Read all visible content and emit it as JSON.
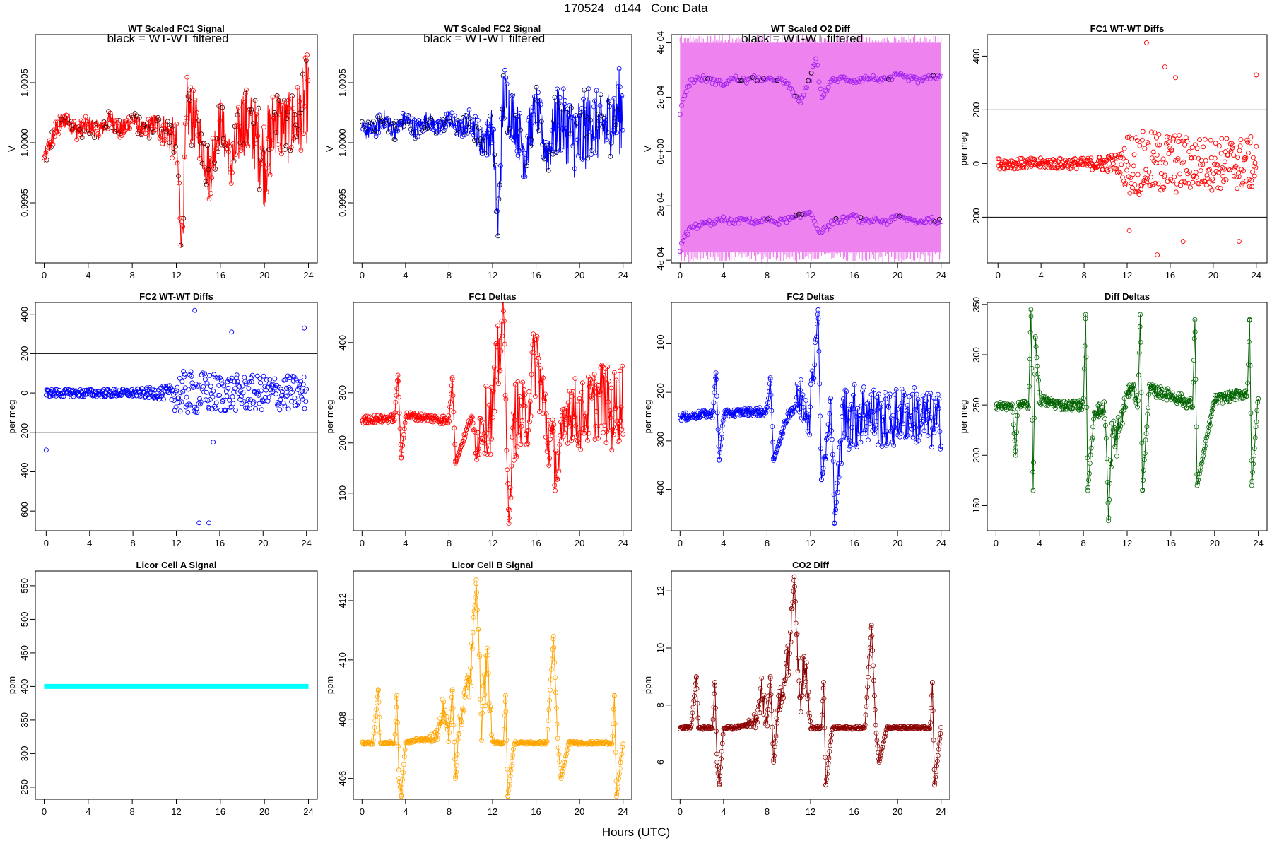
{
  "page": {
    "title": "170524   d144   Conc Data",
    "x_caption": "Hours (UTC)"
  },
  "chart_data": [
    {
      "id": "p1",
      "type": "line",
      "title": "WT Scaled FC1 Signal",
      "annotation": "black = WT-WT filtered",
      "ylabel": "V",
      "xlim": [
        -0.8,
        24.8
      ],
      "ylim": [
        0.999,
        1.0009
      ],
      "xticks": [
        0,
        4,
        8,
        12,
        16,
        20,
        24
      ],
      "yticks": [
        0.9995,
        1.0,
        1.0005
      ],
      "yticklabels": [
        "0.9995",
        "1.0000",
        "1.0005"
      ],
      "color": "#ff0000",
      "x": [
        0,
        1,
        2,
        3,
        4,
        5,
        6,
        7,
        8,
        9,
        10,
        11,
        12,
        12.5,
        13,
        14,
        15,
        16,
        17,
        18,
        19,
        20,
        21,
        22,
        23,
        24
      ],
      "y": [
        0.99985,
        1.0001,
        1.0002,
        1.0001,
        1.00015,
        1.0001,
        1.0002,
        1.0001,
        1.0002,
        1.0001,
        1.00015,
        1.0001,
        1.0,
        0.9992,
        1.0003,
        1.0001,
        0.99975,
        1.0002,
        0.9998,
        1.0002,
        1.0001,
        0.99985,
        1.0002,
        1.0001,
        1.0002,
        1.0004
      ],
      "band": [
        8e-05,
        8e-05,
        8e-05,
        8e-05,
        8e-05,
        8e-05,
        8e-05,
        8e-05,
        8e-05,
        8e-05,
        0.0001,
        0.00015,
        0.0002,
        0.0002,
        0.0003,
        0.0002,
        0.00025,
        0.0002,
        0.0002,
        0.0003,
        0.0003,
        0.0004,
        0.0003,
        0.0003,
        0.0003,
        0.0004
      ],
      "filtered_color": "#4d0000"
    },
    {
      "id": "p2",
      "type": "line",
      "title": "WT Scaled FC2 Signal",
      "annotation": "black = WT-WT filtered",
      "ylabel": "V",
      "xlim": [
        -0.8,
        24.8
      ],
      "ylim": [
        0.999,
        1.0009
      ],
      "xticks": [
        0,
        4,
        8,
        12,
        16,
        20,
        24
      ],
      "yticks": [
        0.9995,
        1.0,
        1.0005
      ],
      "yticklabels": [
        "0.9995",
        "1.0000",
        "1.0005"
      ],
      "color": "#0000ff",
      "x": [
        0,
        1,
        2,
        3,
        4,
        5,
        6,
        7,
        8,
        9,
        10,
        11,
        12,
        12.5,
        13,
        14,
        15,
        16,
        17,
        18,
        19,
        20,
        21,
        22,
        23,
        24
      ],
      "y": [
        1.0001,
        1.0001,
        1.0002,
        1.0001,
        1.0002,
        1.0001,
        1.0002,
        1.0001,
        1.0002,
        1.0001,
        1.0002,
        1.0,
        1.0001,
        0.9993,
        1.0004,
        1.0002,
        0.9999,
        1.0003,
        0.9999,
        1.0002,
        1.0001,
        1.0,
        1.0002,
        1.0001,
        1.0002,
        1.0003
      ],
      "band": [
        8e-05,
        8e-05,
        8e-05,
        8e-05,
        8e-05,
        8e-05,
        8e-05,
        8e-05,
        8e-05,
        8e-05,
        0.0001,
        0.00015,
        0.0002,
        0.0002,
        0.0003,
        0.0002,
        0.00025,
        0.0002,
        0.0002,
        0.0003,
        0.0003,
        0.0004,
        0.0003,
        0.0003,
        0.0003,
        0.0004
      ],
      "filtered_color": "#000033"
    },
    {
      "id": "p3",
      "type": "scatter",
      "title": "WT Scaled O2 Diff",
      "annotation": "black = WT-WT filtered",
      "ylabel": "V",
      "xlim": [
        -0.8,
        24.8
      ],
      "ylim": [
        -0.00041,
        0.00043
      ],
      "xticks": [
        0,
        4,
        8,
        12,
        16,
        20,
        24
      ],
      "yticks": [
        -0.0004,
        -0.0002,
        0,
        0.0002,
        0.0004
      ],
      "yticklabels": [
        "-4e-04",
        "-2e-04",
        "0e+00",
        "2e-04",
        "4e-04"
      ],
      "fill_color": "#ee82ee",
      "point_color": "#a020f0",
      "filtered_color": "#000000",
      "fill_range": [
        -0.00037,
        0.0004
      ],
      "upper": {
        "x": [
          0,
          0.5,
          1,
          2,
          3,
          4,
          5,
          6,
          7,
          8,
          9,
          10,
          11,
          12,
          12.5,
          13,
          14,
          15,
          16,
          17,
          18,
          19,
          20,
          21,
          22,
          23,
          24
        ],
        "y": [
          0.00014,
          0.00022,
          0.00026,
          0.00027,
          0.00026,
          0.00025,
          0.00027,
          0.00026,
          0.00027,
          0.00026,
          0.00027,
          0.00024,
          0.00018,
          0.00027,
          0.00035,
          0.0002,
          0.00026,
          0.00027,
          0.00026,
          0.00027,
          0.00027,
          0.00026,
          0.00028,
          0.00027,
          0.00026,
          0.00027,
          0.00028
        ]
      },
      "lower": {
        "x": [
          0,
          0.5,
          1,
          2,
          3,
          4,
          5,
          6,
          7,
          8,
          9,
          10,
          11,
          12,
          12.5,
          13,
          14,
          15,
          16,
          17,
          18,
          19,
          20,
          21,
          22,
          23,
          24
        ],
        "y": [
          -0.00036,
          -0.00031,
          -0.00028,
          -0.00027,
          -0.00026,
          -0.00025,
          -0.00026,
          -0.00025,
          -0.00026,
          -0.00025,
          -0.00026,
          -0.00025,
          -0.00024,
          -0.00022,
          -0.00027,
          -0.0003,
          -0.00026,
          -0.00025,
          -0.00024,
          -0.00026,
          -0.00025,
          -0.00026,
          -0.00024,
          -0.00025,
          -0.00026,
          -0.00025,
          -0.00026
        ]
      }
    },
    {
      "id": "p4",
      "type": "scatter",
      "title": "FC1 WT-WT Diffs",
      "ylabel": "per meg",
      "xlim": [
        -1,
        25
      ],
      "ylim": [
        -370,
        480
      ],
      "xticks": [
        0,
        4,
        8,
        12,
        16,
        20,
        24
      ],
      "yticks": [
        -200,
        0,
        200,
        400
      ],
      "yticklabels": [
        "-200",
        "0",
        "200",
        "400"
      ],
      "hlines": [
        200,
        -200
      ],
      "color": "#ff0000",
      "spread_y": [
        20,
        20,
        20,
        20,
        20,
        30,
        40,
        120,
        120,
        120,
        100,
        100,
        100
      ],
      "spread_x": [
        0,
        2,
        4,
        6,
        8,
        10,
        11.5,
        12,
        14,
        16,
        18,
        20,
        24
      ],
      "x": [
        13.8,
        15.5,
        16.5,
        17.2,
        12.2,
        14.8,
        22.4,
        24.0
      ],
      "y": [
        450,
        360,
        320,
        -290,
        -250,
        -340,
        -290,
        330
      ]
    },
    {
      "id": "p5",
      "type": "scatter",
      "title": "FC2 WT-WT Diffs",
      "ylabel": "per meg",
      "xlim": [
        -1,
        25
      ],
      "ylim": [
        -700,
        460
      ],
      "xticks": [
        0,
        4,
        8,
        12,
        16,
        20,
        24
      ],
      "yticks": [
        -600,
        -400,
        -200,
        0,
        200,
        400
      ],
      "yticklabels": [
        "-600",
        "-400",
        "-200",
        "0",
        "200",
        "400"
      ],
      "hlines": [
        200,
        -200
      ],
      "color": "#0000ff",
      "spread_x": [
        0,
        2,
        4,
        6,
        8,
        10,
        11.5,
        12,
        14,
        16,
        18,
        20,
        24
      ],
      "spread_y": [
        20,
        20,
        20,
        20,
        20,
        30,
        40,
        110,
        110,
        100,
        90,
        90,
        90
      ],
      "x": [
        0.0,
        13.7,
        14.1,
        15.0,
        15.4,
        17.1,
        23.8
      ],
      "y": [
        -290,
        420,
        -660,
        -660,
        -250,
        310,
        330
      ]
    },
    {
      "id": "p6",
      "type": "line",
      "title": "FC1 Deltas",
      "ylabel": "per meg",
      "xlim": [
        -0.8,
        24.8
      ],
      "ylim": [
        25,
        480
      ],
      "xticks": [
        0,
        4,
        8,
        12,
        16,
        20,
        24
      ],
      "yticks": [
        100,
        200,
        300,
        400
      ],
      "yticklabels": [
        "100",
        "200",
        "300",
        "400"
      ],
      "color": "#ff0000",
      "x": [
        0,
        1,
        2,
        3,
        3.3,
        3.6,
        4,
        6,
        8,
        8.3,
        8.6,
        10,
        10.5,
        11,
        12,
        13,
        13.5,
        14,
        15,
        16,
        17,
        18,
        19,
        20,
        21,
        22,
        23,
        24
      ],
      "y": [
        245,
        248,
        248,
        250,
        335,
        170,
        255,
        250,
        245,
        330,
        160,
        250,
        200,
        240,
        255,
        460,
        40,
        250,
        240,
        380,
        230,
        150,
        280,
        250,
        270,
        290,
        260,
        290
      ],
      "band": [
        8,
        8,
        8,
        8,
        0,
        0,
        8,
        8,
        10,
        0,
        0,
        10,
        40,
        60,
        80,
        80,
        0,
        80,
        80,
        80,
        80,
        60,
        70,
        70,
        70,
        80,
        80,
        80
      ]
    },
    {
      "id": "p7",
      "type": "line",
      "title": "FC2 Deltas",
      "ylabel": "per meg",
      "xlim": [
        -0.8,
        24.8
      ],
      "ylim": [
        -485,
        -15
      ],
      "xticks": [
        0,
        4,
        8,
        12,
        16,
        20,
        24
      ],
      "yticks": [
        -400,
        -300,
        -200,
        -100
      ],
      "yticklabels": [
        "-400",
        "-300",
        "-200",
        "-100"
      ],
      "color": "#0000ff",
      "x": [
        0,
        1,
        2,
        3,
        3.3,
        3.6,
        4,
        6,
        8,
        8.3,
        8.6,
        10,
        10.5,
        11,
        12,
        12.7,
        13,
        14,
        14.2,
        15,
        16,
        17,
        18,
        19,
        20,
        21,
        22,
        23,
        24
      ],
      "y": [
        -250,
        -250,
        -245,
        -245,
        -160,
        -340,
        -245,
        -240,
        -240,
        -170,
        -340,
        -240,
        -230,
        -210,
        -230,
        -30,
        -380,
        -230,
        -470,
        -250,
        -250,
        -240,
        -250,
        -260,
        -250,
        -240,
        -250,
        -260,
        -260
      ],
      "band": [
        8,
        8,
        8,
        8,
        0,
        0,
        8,
        8,
        10,
        0,
        0,
        10,
        30,
        50,
        60,
        0,
        0,
        70,
        0,
        70,
        70,
        70,
        60,
        60,
        60,
        60,
        60,
        60,
        60
      ]
    },
    {
      "id": "p8",
      "type": "line",
      "title": "Diff Deltas",
      "ylabel": "per meg",
      "xlim": [
        -0.8,
        24.8
      ],
      "ylim": [
        125,
        352
      ],
      "xticks": [
        0,
        4,
        8,
        12,
        16,
        20,
        24
      ],
      "yticks": [
        150,
        200,
        250,
        300,
        350
      ],
      "yticklabels": [
        "150",
        "200",
        "250",
        "300",
        "350"
      ],
      "color": "#006400",
      "x": [
        0,
        1,
        1.5,
        1.8,
        2,
        3,
        3.2,
        3.4,
        3.6,
        4,
        6,
        8,
        8.2,
        8.4,
        9,
        10,
        10.3,
        10.6,
        11,
        12,
        12.5,
        13,
        13.2,
        13.4,
        14,
        16,
        18,
        18.2,
        18.4,
        20,
        22,
        23,
        23.2,
        23.4,
        24
      ],
      "y": [
        250,
        248,
        250,
        200,
        250,
        250,
        345,
        165,
        318,
        255,
        250,
        250,
        340,
        165,
        245,
        245,
        135,
        220,
        215,
        260,
        270,
        250,
        340,
        165,
        265,
        260,
        250,
        335,
        170,
        255,
        260,
        262,
        335,
        170,
        260
      ],
      "band": [
        4,
        4,
        4,
        0,
        4,
        4,
        0,
        0,
        0,
        5,
        5,
        5,
        0,
        0,
        6,
        10,
        0,
        20,
        20,
        6,
        6,
        6,
        0,
        0,
        6,
        6,
        6,
        0,
        0,
        5,
        5,
        5,
        0,
        0,
        5
      ]
    },
    {
      "id": "p9",
      "type": "line",
      "title": "Licor Cell A Signal",
      "ylabel": "ppm",
      "xlim": [
        -0.8,
        24.8
      ],
      "ylim": [
        232,
        572
      ],
      "xticks": [
        0,
        4,
        8,
        12,
        16,
        20,
        24
      ],
      "yticks": [
        250,
        300,
        350,
        400,
        450,
        500,
        550
      ],
      "yticklabels": [
        "250",
        "300",
        "350",
        "400",
        "450",
        "500",
        "550"
      ],
      "color": "#00ffff",
      "x": [
        0,
        24
      ],
      "y": [
        400,
        400
      ]
    },
    {
      "id": "p10",
      "type": "line",
      "title": "Licor Cell B Signal",
      "ylabel": "ppm",
      "xlim": [
        -0.8,
        24.8
      ],
      "ylim": [
        405.3,
        413.0
      ],
      "xticks": [
        0,
        4,
        8,
        12,
        16,
        20,
        24
      ],
      "yticks": [
        406,
        408,
        410,
        412
      ],
      "yticklabels": [
        "406",
        "408",
        "410",
        "412"
      ],
      "color": "#ffa500",
      "x": [
        0,
        1,
        1.5,
        1.7,
        2,
        3,
        3.2,
        3.4,
        3.6,
        4,
        5,
        6,
        7,
        7.5,
        8,
        8.3,
        8.6,
        9,
        10,
        10.5,
        11,
        11.5,
        12,
        13,
        13.2,
        13.4,
        14,
        17,
        17.6,
        18,
        18.3,
        19,
        22,
        23,
        23.2,
        23.4,
        24
      ],
      "y": [
        407.2,
        407.2,
        409.0,
        407.2,
        407.2,
        407.2,
        408.8,
        406.0,
        405.4,
        407.2,
        407.3,
        407.3,
        407.5,
        408.5,
        407.3,
        409.0,
        406.0,
        408.0,
        409.5,
        412.7,
        408.0,
        410.0,
        407.2,
        407.2,
        408.8,
        405.4,
        407.2,
        407.2,
        410.8,
        407.2,
        406.0,
        407.2,
        407.2,
        407.2,
        408.8,
        405.4,
        407.2
      ],
      "band": [
        0.05,
        0.05,
        0,
        0,
        0.05,
        0.05,
        0,
        0,
        0,
        0.05,
        0.05,
        0.05,
        0.3,
        0.5,
        0.3,
        0,
        0,
        0.4,
        0.8,
        0,
        0.8,
        1.0,
        0.05,
        0.05,
        0,
        0,
        0.05,
        0.05,
        0,
        0.05,
        0,
        0.05,
        0.05,
        0.05,
        0,
        0,
        0.05
      ]
    },
    {
      "id": "p11",
      "type": "line",
      "title": "CO2 Diff",
      "ylabel": "ppm",
      "xlim": [
        -0.8,
        24.8
      ],
      "ylim": [
        4.7,
        12.7
      ],
      "xticks": [
        0,
        4,
        8,
        12,
        16,
        20,
        24
      ],
      "yticks": [
        6,
        8,
        10,
        12
      ],
      "yticklabels": [
        "6",
        "8",
        "10",
        "12"
      ],
      "color": "#8b0000",
      "x": [
        0,
        1,
        1.5,
        1.7,
        2,
        3,
        3.2,
        3.4,
        3.6,
        4,
        5,
        6,
        7,
        7.5,
        8,
        8.3,
        8.6,
        9,
        10,
        10.5,
        11,
        11.5,
        12,
        13,
        13.2,
        13.4,
        14,
        17,
        17.6,
        18,
        18.3,
        19,
        22,
        23,
        23.2,
        23.4,
        24
      ],
      "y": [
        7.2,
        7.2,
        9.0,
        7.2,
        7.2,
        7.2,
        8.8,
        6.0,
        5.2,
        7.2,
        7.2,
        7.3,
        7.5,
        8.5,
        7.3,
        9.0,
        6.0,
        8.0,
        9.5,
        12.5,
        8.0,
        10.0,
        7.2,
        7.2,
        8.8,
        5.2,
        7.2,
        7.2,
        10.8,
        7.2,
        6.0,
        7.2,
        7.2,
        7.2,
        8.8,
        5.2,
        7.2
      ],
      "band": [
        0.05,
        0.05,
        0,
        0,
        0.05,
        0.05,
        0,
        0,
        0,
        0.05,
        0.05,
        0.05,
        0.3,
        0.5,
        0.3,
        0,
        0,
        0.4,
        0.8,
        0,
        0.8,
        1.0,
        0.05,
        0.05,
        0,
        0,
        0.05,
        0.05,
        0,
        0.05,
        0,
        0.05,
        0.05,
        0.05,
        0,
        0,
        0.05
      ]
    }
  ]
}
